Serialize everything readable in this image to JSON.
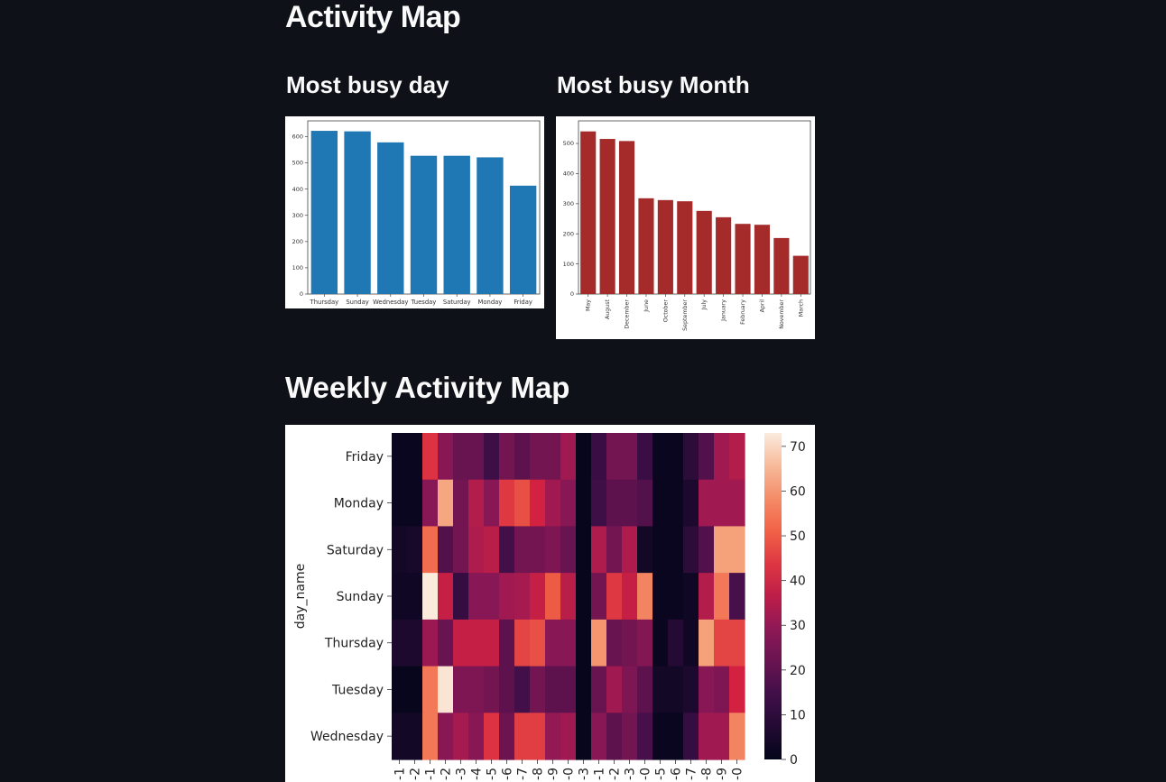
{
  "page": {
    "title": "Activity Map",
    "day_heading": "Most busy day",
    "month_heading": "Most busy Month",
    "weekly_heading": "Weekly Activity Map"
  },
  "chart_data": [
    {
      "type": "bar",
      "title": "Most busy day",
      "categories": [
        "Thursday",
        "Sunday",
        "Wednesday",
        "Tuesday",
        "Saturday",
        "Monday",
        "Friday"
      ],
      "values": [
        622,
        620,
        578,
        527,
        527,
        521,
        413
      ],
      "ylim": [
        0,
        660
      ],
      "yticks": [
        0,
        100,
        200,
        300,
        400,
        500,
        600
      ],
      "color": "#1f77b4"
    },
    {
      "type": "bar",
      "title": "Most busy Month",
      "categories": [
        "May",
        "August",
        "December",
        "June",
        "October",
        "September",
        "July",
        "January",
        "February",
        "April",
        "November",
        "March"
      ],
      "values": [
        540,
        515,
        508,
        318,
        312,
        308,
        276,
        255,
        233,
        230,
        186,
        127
      ],
      "ylim": [
        0,
        575
      ],
      "yticks": [
        0,
        100,
        200,
        300,
        400,
        500
      ],
      "color": "#a52a2a"
    },
    {
      "type": "heatmap",
      "title": "Weekly Activity Map",
      "ylabel": "day_name",
      "rows": [
        "Friday",
        "Monday",
        "Saturday",
        "Sunday",
        "Thursday",
        "Tuesday",
        "Wednesday"
      ],
      "x_tick_labels": [
        "-1",
        "-2",
        "-1",
        "-2",
        "-3",
        "-4",
        "-5",
        "-6",
        "-7",
        "-8",
        "-9",
        "-0",
        "-3",
        "-1",
        "-2",
        "-3",
        "-0",
        "-5",
        "-6",
        "-7",
        "-8",
        "-9",
        "-0"
      ],
      "values": [
        [
          2,
          2,
          43,
          28,
          22,
          22,
          14,
          24,
          20,
          24,
          24,
          32,
          1,
          13,
          24,
          24,
          13,
          2,
          2,
          10,
          18,
          32,
          35
        ],
        [
          2,
          2,
          28,
          63,
          24,
          35,
          28,
          44,
          48,
          40,
          32,
          28,
          1,
          14,
          20,
          20,
          18,
          2,
          2,
          6,
          32,
          32,
          32
        ],
        [
          4,
          5,
          53,
          18,
          24,
          34,
          36,
          15,
          24,
          24,
          26,
          22,
          1,
          34,
          24,
          34,
          4,
          2,
          2,
          10,
          18,
          62,
          62
        ],
        [
          3,
          3,
          73,
          38,
          12,
          28,
          28,
          32,
          33,
          38,
          50,
          36,
          1,
          24,
          44,
          38,
          57,
          2,
          2,
          3,
          35,
          55,
          16
        ],
        [
          6,
          6,
          31,
          22,
          38,
          38,
          38,
          20,
          46,
          48,
          28,
          28,
          1,
          60,
          22,
          24,
          27,
          2,
          8,
          3,
          62,
          46,
          46
        ],
        [
          1,
          1,
          55,
          72,
          26,
          26,
          24,
          20,
          15,
          24,
          20,
          20,
          1,
          22,
          32,
          26,
          20,
          4,
          4,
          6,
          28,
          26,
          40
        ],
        [
          4,
          4,
          55,
          28,
          33,
          28,
          43,
          23,
          45,
          45,
          30,
          32,
          1,
          28,
          20,
          24,
          16,
          2,
          2,
          12,
          32,
          32,
          57
        ]
      ],
      "colorbar_ticks": [
        0,
        10,
        20,
        30,
        40,
        50,
        60,
        70
      ],
      "vmax": 73
    }
  ]
}
